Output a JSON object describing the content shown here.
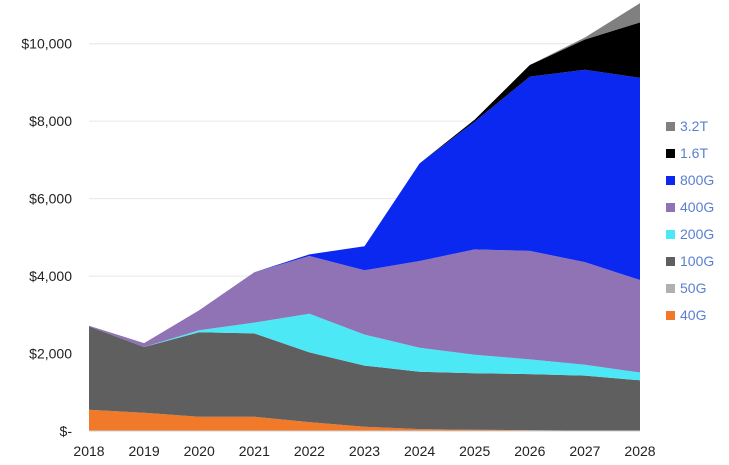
{
  "chart_data": {
    "type": "area",
    "stacked": true,
    "title": "",
    "xlabel": "",
    "ylabel": "",
    "x": [
      "2018",
      "2019",
      "2020",
      "2021",
      "2022",
      "2023",
      "2024",
      "2025",
      "2026",
      "2027",
      "2028"
    ],
    "ylim": [
      0,
      11000
    ],
    "yticks": [
      0,
      2000,
      4000,
      6000,
      8000,
      10000
    ],
    "ytick_labels": [
      "$-",
      "$2,000",
      "$4,000",
      "$6,000",
      "$8,000",
      "$10,000"
    ],
    "grid": true,
    "legend_position": "right",
    "series": [
      {
        "name": "40G",
        "color": "#f07a2a",
        "values": [
          550,
          470,
          370,
          370,
          230,
          110,
          50,
          30,
          20,
          10,
          10
        ]
      },
      {
        "name": "50G",
        "color": "#b0b0b0",
        "values": [
          0,
          0,
          0,
          0,
          0,
          0,
          0,
          0,
          0,
          0,
          0
        ]
      },
      {
        "name": "100G",
        "color": "#5f5f5f",
        "values": [
          2150,
          1700,
          2180,
          2150,
          1800,
          1580,
          1480,
          1460,
          1450,
          1420,
          1300
        ]
      },
      {
        "name": "200G",
        "color": "#4de8f6",
        "values": [
          0,
          0,
          50,
          280,
          1000,
          800,
          620,
          480,
          380,
          280,
          200
        ]
      },
      {
        "name": "400G",
        "color": "#8f73b5",
        "values": [
          20,
          100,
          520,
          1300,
          1490,
          1660,
          2240,
          2720,
          2800,
          2650,
          2390
        ]
      },
      {
        "name": "800G",
        "color": "#0a28f0",
        "values": [
          0,
          0,
          0,
          0,
          40,
          620,
          2520,
          3300,
          4500,
          4970,
          5220
        ]
      },
      {
        "name": "1.6T",
        "color": "#000000",
        "values": [
          0,
          0,
          0,
          0,
          0,
          0,
          0,
          50,
          300,
          780,
          1430
        ]
      },
      {
        "name": "3.2T",
        "color": "#808080",
        "values": [
          0,
          0,
          0,
          0,
          0,
          0,
          0,
          0,
          0,
          50,
          500
        ]
      }
    ],
    "legend_order": [
      "3.2T",
      "1.6T",
      "800G",
      "400G",
      "200G",
      "100G",
      "50G",
      "40G"
    ]
  }
}
